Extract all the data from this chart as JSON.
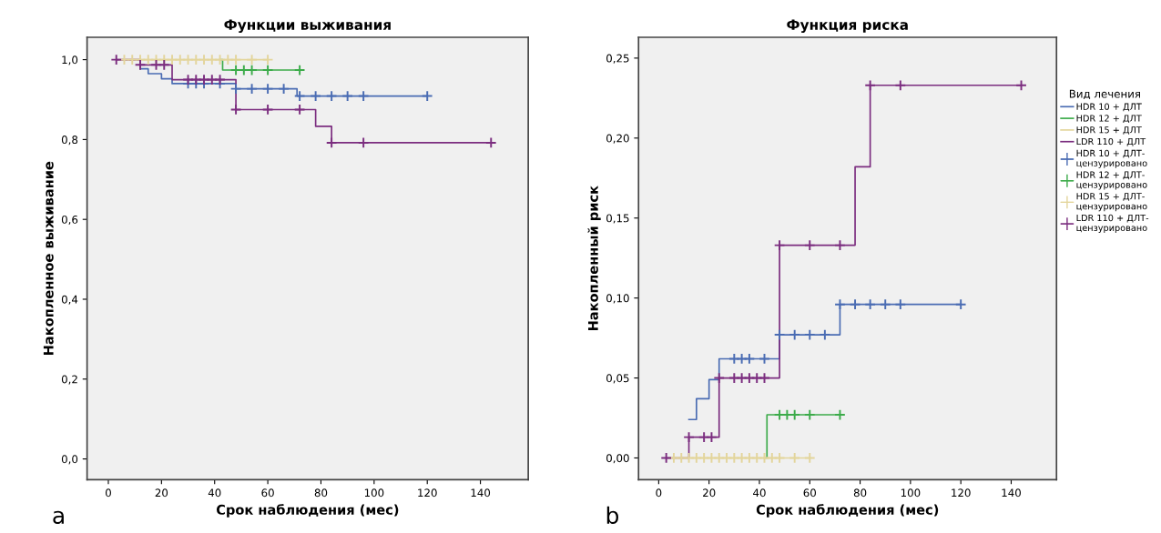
{
  "chart_data": [
    {
      "type": "step",
      "title": "Функции выживания",
      "xlabel": "Срок наблюдения (мес)",
      "ylabel": "Накопленное выживание",
      "xlim": [
        -8,
        158
      ],
      "xticks": [
        0,
        20,
        40,
        60,
        80,
        100,
        120,
        140
      ],
      "ylim": [
        -0.052,
        1.056
      ],
      "yticks": [
        {
          "value": 0.0,
          "label": "0,0"
        },
        {
          "value": 0.2,
          "label": "0,2"
        },
        {
          "value": 0.4,
          "label": "0,4"
        },
        {
          "value": 0.6,
          "label": "0,6"
        },
        {
          "value": 0.8,
          "label": "0,8"
        },
        {
          "value": 1.0,
          "label": "1,0"
        }
      ],
      "grid": false,
      "legend": false,
      "line_style": "solid",
      "annotations": [
        "a"
      ],
      "series": [
        {
          "color": "#4a6cb3",
          "x": [
            12,
            15,
            20,
            24,
            48,
            71,
            120
          ],
          "values": [
            0.977,
            0.965,
            0.952,
            0.94,
            0.927,
            0.909,
            0.909
          ]
        },
        {
          "color": "#3cab4a",
          "x": [
            42,
            43,
            72
          ],
          "values": [
            1.0,
            0.974,
            0.974
          ]
        },
        {
          "color": "#e3d59c",
          "x": [
            5,
            60
          ],
          "values": [
            1.0,
            1.0
          ]
        },
        {
          "color": "#7b2d7f",
          "x": [
            3,
            12,
            24,
            48,
            78,
            84,
            144
          ],
          "values": [
            1.0,
            0.987,
            0.95,
            0.875,
            0.833,
            0.792,
            0.792
          ]
        },
        {
          "type": "scatter",
          "marker": "cross",
          "color": "#4a6cb3",
          "x": [
            30,
            33,
            36,
            42,
            48,
            54,
            60,
            66,
            72,
            78,
            84,
            90,
            96,
            120
          ],
          "values": [
            0.94,
            0.94,
            0.94,
            0.94,
            0.927,
            0.927,
            0.927,
            0.927,
            0.909,
            0.909,
            0.909,
            0.909,
            0.909,
            0.909
          ]
        },
        {
          "type": "scatter",
          "marker": "cross",
          "color": "#3cab4a",
          "x": [
            48,
            51,
            54,
            60,
            72
          ],
          "values": [
            0.974,
            0.974,
            0.974,
            0.974,
            0.974
          ]
        },
        {
          "type": "scatter",
          "marker": "cross",
          "color": "#e3d59c",
          "x": [
            6,
            9,
            12,
            15,
            18,
            21,
            24,
            27,
            30,
            33,
            36,
            39,
            42,
            45,
            48,
            54,
            60
          ],
          "values": [
            1.0,
            1.0,
            1.0,
            1.0,
            1.0,
            1.0,
            1.0,
            1.0,
            1.0,
            1.0,
            1.0,
            1.0,
            1.0,
            1.0,
            1.0,
            1.0,
            1.0
          ]
        },
        {
          "type": "scatter",
          "marker": "cross",
          "color": "#7b2d7f",
          "x": [
            3,
            12,
            18,
            21,
            30,
            33,
            36,
            39,
            42,
            48,
            60,
            72,
            84,
            96,
            144
          ],
          "values": [
            1.0,
            0.987,
            0.987,
            0.987,
            0.95,
            0.95,
            0.95,
            0.95,
            0.95,
            0.875,
            0.875,
            0.875,
            0.792,
            0.792,
            0.792
          ]
        }
      ]
    },
    {
      "type": "step",
      "title": "Функция риска",
      "xlabel": "Срок наблюдения (мес)",
      "ylabel": "Накопленный риск",
      "legend_title": "Вид лечения",
      "xlim": [
        -8,
        158
      ],
      "xticks": [
        0,
        20,
        40,
        60,
        80,
        100,
        120,
        140
      ],
      "ylim": [
        -0.0136,
        0.263
      ],
      "yticks": [
        {
          "value": 0.0,
          "label": "0,00"
        },
        {
          "value": 0.05,
          "label": "0,05"
        },
        {
          "value": 0.1,
          "label": "0,10"
        },
        {
          "value": 0.15,
          "label": "0,15"
        },
        {
          "value": 0.2,
          "label": "0,20"
        },
        {
          "value": 0.25,
          "label": "0,25"
        }
      ],
      "grid": false,
      "legend": "right",
      "line_style": "solid",
      "annotations": [
        "b"
      ],
      "series": [
        {
          "name": "HDR 10 + ДЛТ",
          "color": "#4a6cb3",
          "x": [
            12,
            15,
            20,
            24,
            48,
            72,
            120
          ],
          "values": [
            0.024,
            0.037,
            0.049,
            0.062,
            0.077,
            0.096,
            0.096
          ]
        },
        {
          "name": "HDR 12 + ДЛТ",
          "color": "#3cab4a",
          "x": [
            42,
            43,
            72
          ],
          "values": [
            0.0,
            0.027,
            0.027
          ]
        },
        {
          "name": "HDR 15 + ДЛТ",
          "color": "#e3d59c",
          "x": [
            5,
            60
          ],
          "values": [
            0.0,
            0.0
          ]
        },
        {
          "name": "LDR 110 + ДЛТ",
          "color": "#7b2d7f",
          "x": [
            3,
            12,
            24,
            48,
            78,
            84,
            144
          ],
          "values": [
            0.0,
            0.013,
            0.05,
            0.133,
            0.182,
            0.233,
            0.233
          ]
        },
        {
          "type": "scatter",
          "marker": "cross",
          "name": "HDR 10 + ДЛТ-\nцензурировано",
          "color": "#4a6cb3",
          "x": [
            30,
            33,
            36,
            42,
            48,
            54,
            60,
            66,
            72,
            78,
            84,
            90,
            96,
            120
          ],
          "values": [
            0.062,
            0.062,
            0.062,
            0.062,
            0.077,
            0.077,
            0.077,
            0.077,
            0.096,
            0.096,
            0.096,
            0.096,
            0.096,
            0.096
          ]
        },
        {
          "type": "scatter",
          "marker": "cross",
          "name": "HDR 12 + ДЛТ-\nцензурировано",
          "color": "#3cab4a",
          "x": [
            48,
            51,
            54,
            60,
            72
          ],
          "values": [
            0.027,
            0.027,
            0.027,
            0.027,
            0.027
          ]
        },
        {
          "type": "scatter",
          "marker": "cross",
          "name": "HDR 15 + ДЛТ-\nцензурировано",
          "color": "#e3d59c",
          "x": [
            6,
            9,
            12,
            15,
            18,
            21,
            24,
            27,
            30,
            33,
            36,
            39,
            42,
            45,
            48,
            54,
            60
          ],
          "values": [
            0,
            0,
            0,
            0,
            0,
            0,
            0,
            0,
            0,
            0,
            0,
            0,
            0,
            0,
            0,
            0,
            0
          ]
        },
        {
          "type": "scatter",
          "marker": "cross",
          "name": "LDR 110 + ДЛТ-\nцензурировано",
          "color": "#7b2d7f",
          "x": [
            3,
            12,
            18,
            21,
            24,
            30,
            33,
            36,
            39,
            42,
            48,
            60,
            72,
            84,
            96,
            144
          ],
          "values": [
            0.0,
            0.013,
            0.013,
            0.013,
            0.05,
            0.05,
            0.05,
            0.05,
            0.05,
            0.05,
            0.133,
            0.133,
            0.133,
            0.233,
            0.233,
            0.233
          ]
        }
      ]
    }
  ]
}
